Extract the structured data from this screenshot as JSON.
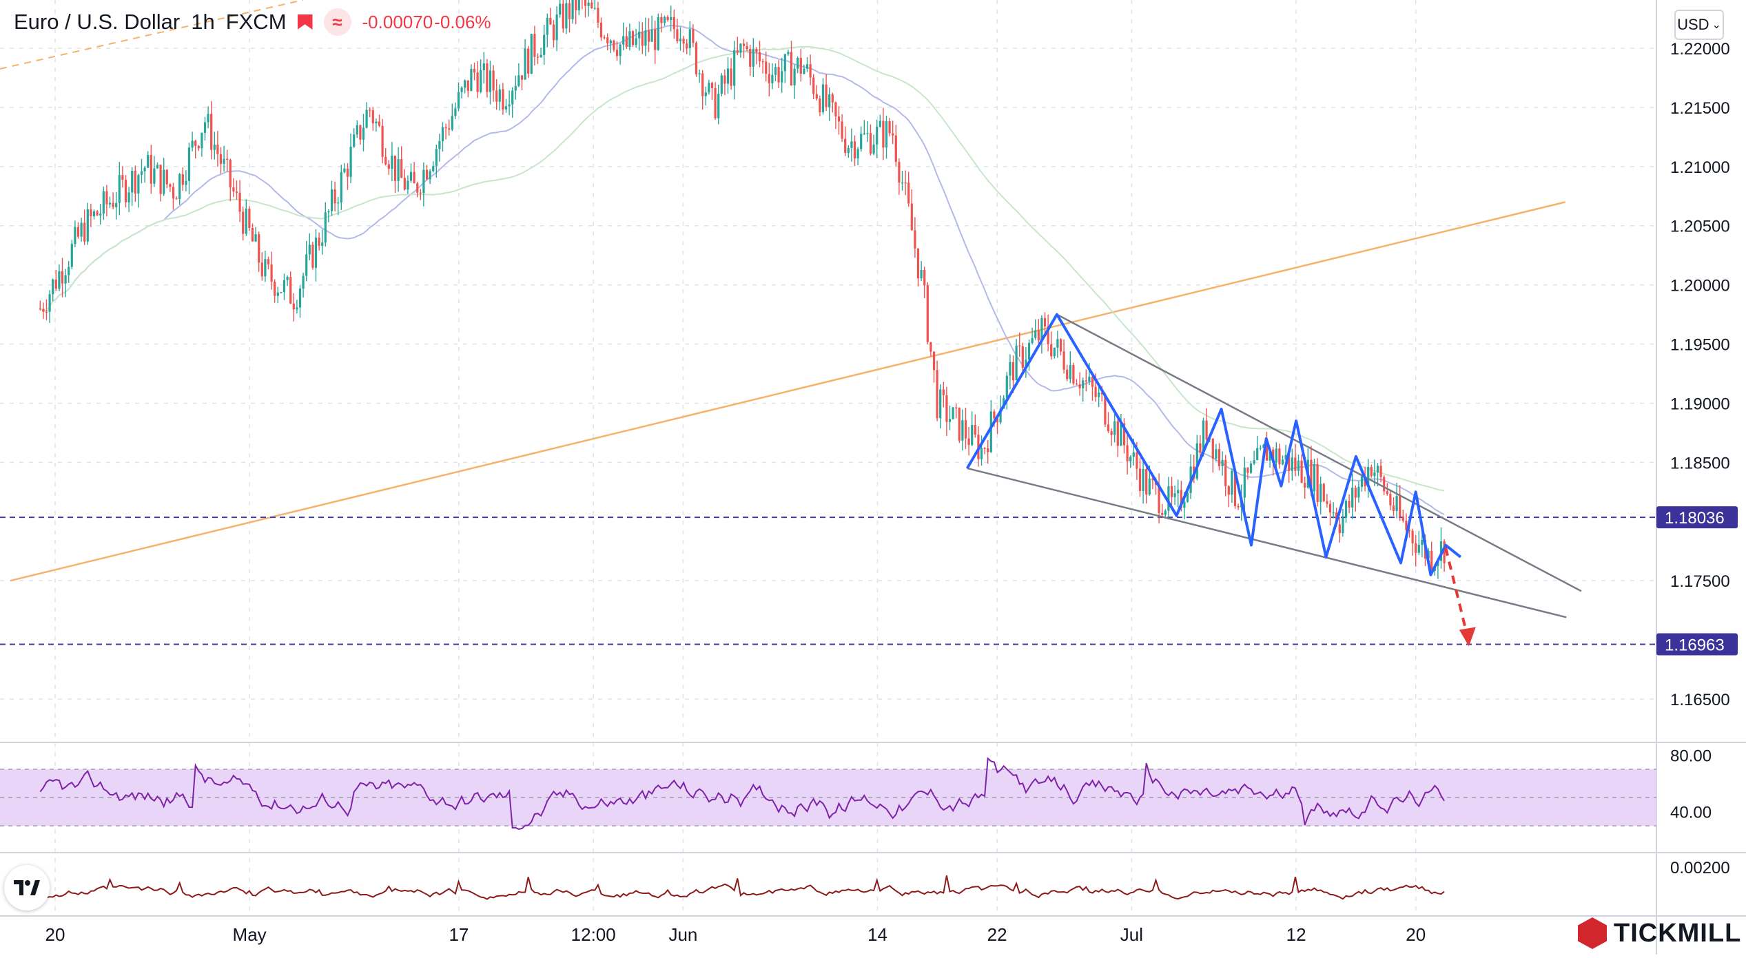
{
  "header": {
    "symbol": "Euro / U.S. Dollar",
    "interval": "1h",
    "source": "FXCM",
    "change": "-0.00070",
    "change_pct": "-0.06%",
    "flag_icon": "flag-icon",
    "indicator_icon": "wave-icon"
  },
  "currency_button": {
    "label": "USD",
    "icon": "chevron-down-icon"
  },
  "brand": {
    "name": "TICKMILL",
    "icon": "tickmill-hex-icon",
    "color": "#d1262c"
  },
  "tradingview_logo": {
    "icon": "tradingview-logo-icon"
  },
  "colors": {
    "up": "#26a69a",
    "down": "#ef5350",
    "pattern": "#2962ff",
    "trendline": "#787b86",
    "support_line": "#f6b26b",
    "level": "#3f3fa0",
    "rsi": "#7e22a9",
    "rsi_band": "#e8d5f7",
    "macd": "#8b1a1a",
    "forecast": "#e53935",
    "ma_fast": "#b3b9e8",
    "ma_slow": "#c8e6c9"
  },
  "chart_data": {
    "type": "candlestick",
    "title": "Euro / U.S. Dollar",
    "price_axis": {
      "range": [
        1.162,
        1.2225
      ],
      "ticks": [
        "1.22000",
        "1.21500",
        "1.21000",
        "1.20500",
        "1.20000",
        "1.19500",
        "1.19000",
        "1.18500",
        "1.17500",
        "1.16500"
      ]
    },
    "time_axis": {
      "range_days": "2021-04-18 to 2021-07-28",
      "ticks": [
        {
          "label": "20",
          "date": "2021-04-20"
        },
        {
          "label": "May",
          "date": "2021-05-03"
        },
        {
          "label": "17",
          "date": "2021-05-17"
        },
        {
          "label": "12:00",
          "date": "2021-05-26"
        },
        {
          "label": "Jun",
          "date": "2021-06-01"
        },
        {
          "label": "14",
          "date": "2021-06-14"
        },
        {
          "label": "22",
          "date": "2021-06-22"
        },
        {
          "label": "Jul",
          "date": "2021-07-01"
        },
        {
          "label": "12",
          "date": "2021-07-12"
        },
        {
          "label": "20",
          "date": "2021-07-20"
        }
      ]
    },
    "price_path": [
      [
        "2021-04-19",
        1.198
      ],
      [
        "2021-04-22",
        1.205
      ],
      [
        "2021-04-26",
        1.21
      ],
      [
        "2021-04-28",
        1.208
      ],
      [
        "2021-04-30",
        1.214
      ],
      [
        "2021-05-04",
        1.201
      ],
      [
        "2021-05-06",
        1.199
      ],
      [
        "2021-05-08",
        1.205
      ],
      [
        "2021-05-11",
        1.215
      ],
      [
        "2021-05-13",
        1.209
      ],
      [
        "2021-05-14",
        1.208
      ],
      [
        "2021-05-18",
        1.218
      ],
      [
        "2021-05-20",
        1.216
      ],
      [
        "2021-05-22",
        1.22
      ],
      [
        "2021-05-25",
        1.224
      ],
      [
        "2021-05-28",
        1.22
      ],
      [
        "2021-06-01",
        1.222
      ],
      [
        "2021-06-03",
        1.215
      ],
      [
        "2021-06-05",
        1.22
      ],
      [
        "2021-06-07",
        1.218
      ],
      [
        "2021-06-09",
        1.2185
      ],
      [
        "2021-06-12",
        1.212
      ],
      [
        "2021-06-15",
        1.213
      ],
      [
        "2021-06-17",
        1.2
      ],
      [
        "2021-06-18",
        1.19
      ],
      [
        "2021-06-21",
        1.186
      ],
      [
        "2021-06-23",
        1.193
      ],
      [
        "2021-06-25",
        1.196
      ],
      [
        "2021-06-29",
        1.19
      ],
      [
        "2021-07-02",
        1.183
      ],
      [
        "2021-07-04",
        1.181
      ],
      [
        "2021-07-06",
        1.188
      ],
      [
        "2021-07-08",
        1.182
      ],
      [
        "2021-07-10",
        1.186
      ],
      [
        "2021-07-13",
        1.184
      ],
      [
        "2021-07-15",
        1.18
      ],
      [
        "2021-07-17",
        1.185
      ],
      [
        "2021-07-19",
        1.18
      ],
      [
        "2021-07-21",
        1.177
      ],
      [
        "2021-07-22",
        1.178
      ]
    ],
    "horizontal_levels": [
      {
        "price": 1.18036,
        "label": "1.18036"
      },
      {
        "price": 1.16963,
        "label": "1.16963"
      }
    ],
    "wedge_upper": [
      [
        "2021-06-26",
        1.1975
      ],
      [
        "2021-07-26",
        1.1775
      ]
    ],
    "wedge_lower": [
      [
        "2021-06-20",
        1.1845
      ],
      [
        "2021-07-25",
        1.1735
      ]
    ],
    "support_line": [
      [
        "2021-04-17",
        1.175
      ],
      [
        "2021-07-30",
        1.207
      ]
    ],
    "zigzag": [
      [
        "2021-06-20",
        1.1845
      ],
      [
        "2021-06-26",
        1.1975
      ],
      [
        "2021-07-04",
        1.1805
      ],
      [
        "2021-07-07",
        1.1895
      ],
      [
        "2021-07-09",
        1.178
      ],
      [
        "2021-07-10",
        1.187
      ],
      [
        "2021-07-11",
        1.183
      ],
      [
        "2021-07-12",
        1.1885
      ],
      [
        "2021-07-14",
        1.177
      ],
      [
        "2021-07-16",
        1.1855
      ],
      [
        "2021-07-19",
        1.1765
      ],
      [
        "2021-07-20",
        1.1825
      ],
      [
        "2021-07-21",
        1.1755
      ],
      [
        "2021-07-22",
        1.178
      ],
      [
        "2021-07-23",
        1.177
      ]
    ],
    "forecast_arrow": [
      [
        "2021-07-22",
        1.1778
      ],
      [
        "2021-07-23",
        1.1698
      ]
    ],
    "rsi": {
      "ticks": [
        "80.00",
        "40.00"
      ],
      "range": [
        15,
        85
      ],
      "band": [
        30,
        70
      ],
      "path": [
        [
          0,
          55
        ],
        [
          0.1,
          48
        ],
        [
          0.2,
          60
        ],
        [
          0.3,
          45
        ],
        [
          0.4,
          58
        ],
        [
          0.5,
          50
        ],
        [
          0.55,
          38
        ],
        [
          0.6,
          65
        ],
        [
          0.7,
          48
        ],
        [
          0.8,
          52
        ],
        [
          0.9,
          46
        ],
        [
          0.95,
          50
        ]
      ]
    },
    "macd": {
      "ticks": [
        "0.00200"
      ],
      "range": [
        -0.0015,
        0.0028
      ]
    },
    "grid": true
  }
}
